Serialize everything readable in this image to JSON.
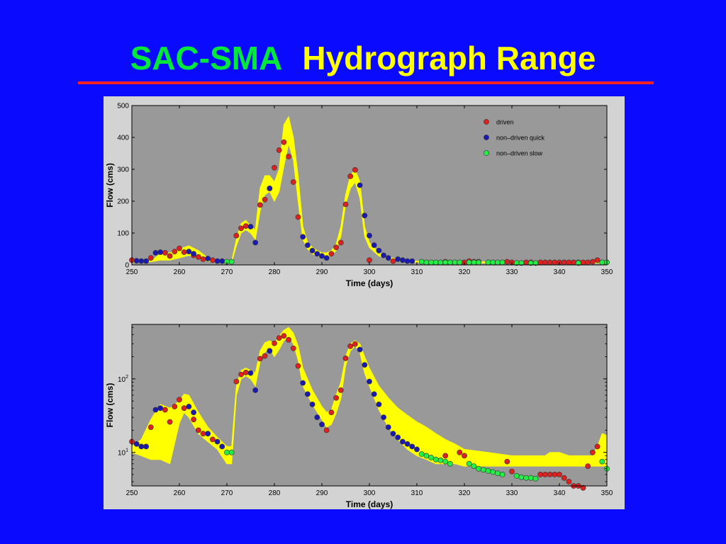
{
  "slide": {
    "title_part1": "SAC-SMA",
    "title_part2": "Hydrograph Range",
    "colors": {
      "background": "#0a0aff",
      "title_part1": "#00e83a",
      "title_part2": "#ffff00",
      "rule": "#ff2020"
    }
  },
  "chart_data": [
    {
      "type": "scatter",
      "xlabel": "Time (days)",
      "ylabel": "Flow (cms)",
      "xlim": [
        250,
        350
      ],
      "ylim": [
        0,
        500
      ],
      "xticks": [
        250,
        260,
        270,
        280,
        290,
        300,
        310,
        320,
        330,
        340,
        350
      ],
      "yticks": [
        0,
        100,
        200,
        300,
        400,
        500
      ],
      "grid": false,
      "legend_position": "top-right",
      "legend": [
        {
          "label": "driven",
          "color": "#dd2020"
        },
        {
          "label": "non–driven quick",
          "color": "#1a1ab0"
        },
        {
          "label": "non–driven slow",
          "color": "#22ee44"
        }
      ],
      "range_band": {
        "color": "#ffff00",
        "x": [
          250,
          252,
          254,
          256,
          258,
          260,
          262,
          264,
          266,
          268,
          270,
          271,
          272,
          273,
          274,
          275,
          276,
          277,
          278,
          279,
          280,
          281,
          282,
          283,
          284,
          285,
          286,
          287,
          288,
          289,
          290,
          291,
          292,
          293,
          294,
          295,
          296,
          297,
          298,
          299,
          300,
          302,
          304,
          306,
          308,
          310,
          320,
          330,
          340,
          350
        ],
        "upper": [
          10,
          10,
          12,
          35,
          38,
          50,
          60,
          45,
          22,
          15,
          10,
          12,
          80,
          130,
          140,
          120,
          110,
          240,
          280,
          280,
          260,
          300,
          440,
          465,
          400,
          280,
          120,
          70,
          55,
          45,
          38,
          38,
          45,
          65,
          120,
          220,
          280,
          300,
          260,
          120,
          70,
          38,
          25,
          18,
          14,
          12,
          10,
          10,
          10,
          12
        ],
        "lower": [
          8,
          8,
          10,
          15,
          15,
          22,
          30,
          20,
          12,
          9,
          7,
          7,
          60,
          100,
          110,
          100,
          80,
          170,
          220,
          230,
          200,
          230,
          310,
          380,
          330,
          200,
          80,
          50,
          35,
          28,
          25,
          25,
          30,
          45,
          90,
          190,
          240,
          260,
          210,
          90,
          55,
          28,
          20,
          12,
          10,
          8,
          6,
          6,
          6,
          6
        ]
      },
      "series": [
        {
          "name": "driven",
          "color": "#dd2020",
          "x": [
            250,
            254,
            257,
            258,
            259,
            260,
            261,
            263,
            264,
            265,
            267,
            272,
            273,
            274,
            277,
            278,
            279,
            280,
            281,
            282,
            283,
            284,
            285,
            292,
            293,
            294,
            295,
            296,
            297,
            300,
            305,
            312,
            316,
            320,
            321,
            322,
            323,
            325,
            329,
            330,
            333,
            334,
            336,
            337,
            338,
            339,
            340,
            341,
            342,
            343,
            344,
            345,
            346,
            347,
            348
          ],
          "y": [
            15,
            22,
            38,
            28,
            42,
            52,
            40,
            30,
            25,
            18,
            15,
            92,
            115,
            122,
            188,
            205,
            240,
            305,
            360,
            385,
            340,
            260,
            150,
            35,
            55,
            70,
            190,
            278,
            298,
            15,
            12,
            8,
            10,
            8,
            12,
            10,
            10,
            8,
            10,
            8,
            8,
            8,
            8,
            8,
            8,
            8,
            8,
            8,
            8,
            8,
            8,
            8,
            8,
            10,
            15
          ]
        },
        {
          "name": "non–driven quick",
          "color": "#1a1ab0",
          "x": [
            251,
            252,
            253,
            255,
            256,
            262,
            263,
            266,
            268,
            269,
            275,
            276,
            279,
            286,
            287,
            288,
            289,
            290,
            291,
            298,
            299,
            300,
            301,
            302,
            303,
            304,
            306,
            307,
            308,
            309
          ],
          "y": [
            13,
            12,
            12,
            38,
            40,
            42,
            35,
            20,
            12,
            12,
            120,
            70,
            240,
            88,
            62,
            45,
            35,
            28,
            22,
            250,
            155,
            92,
            62,
            45,
            30,
            22,
            18,
            15,
            12,
            12
          ]
        },
        {
          "name": "non–driven slow",
          "color": "#22ee44",
          "x": [
            270,
            271,
            311,
            312,
            313,
            314,
            315,
            316,
            317,
            318,
            319,
            321,
            322,
            323,
            325,
            326,
            327,
            328,
            331,
            332,
            334,
            335,
            344,
            349,
            350
          ],
          "y": [
            10,
            10,
            10,
            8,
            8,
            8,
            8,
            8,
            8,
            8,
            8,
            8,
            8,
            8,
            8,
            8,
            8,
            8,
            6,
            6,
            6,
            6,
            6,
            8,
            8
          ]
        }
      ]
    },
    {
      "type": "scatter",
      "xlabel": "Time (days)",
      "ylabel": "Flow (cms)",
      "xlim": [
        250,
        350
      ],
      "yscale": "log",
      "ylim": [
        3.5,
        550
      ],
      "xticks": [
        250,
        260,
        270,
        280,
        290,
        300,
        310,
        320,
        330,
        340,
        350
      ],
      "yticks": [
        {
          "value": 10,
          "label": "10",
          "sup": "1"
        },
        {
          "value": 100,
          "label": "10",
          "sup": "2"
        }
      ],
      "grid": false,
      "range_band": {
        "color": "#ffff00",
        "x": [
          250,
          252,
          254,
          256,
          258,
          260,
          261,
          262,
          264,
          266,
          268,
          270,
          271,
          272,
          273,
          274,
          275,
          276,
          277,
          278,
          279,
          280,
          281,
          282,
          283,
          284,
          285,
          286,
          288,
          290,
          291,
          292,
          293,
          294,
          295,
          296,
          297,
          298,
          299,
          300,
          302,
          304,
          306,
          308,
          310,
          312,
          314,
          316,
          318,
          320,
          325,
          330,
          335,
          337,
          338,
          340,
          342,
          344,
          346,
          347,
          348,
          349,
          350
        ],
        "upper": [
          12,
          15,
          28,
          45,
          40,
          50,
          62,
          60,
          35,
          22,
          16,
          12,
          12,
          80,
          130,
          140,
          130,
          120,
          240,
          310,
          330,
          300,
          380,
          460,
          500,
          420,
          280,
          140,
          70,
          42,
          35,
          38,
          60,
          90,
          200,
          300,
          330,
          300,
          200,
          140,
          80,
          55,
          40,
          32,
          26,
          22,
          18,
          15,
          13,
          11,
          10,
          9,
          9,
          9,
          10,
          10,
          9,
          9,
          9,
          9,
          12,
          18,
          17
        ],
        "lower": [
          10,
          9,
          8,
          8,
          7,
          25,
          35,
          30,
          18,
          14,
          11,
          7,
          7,
          60,
          100,
          110,
          100,
          80,
          170,
          230,
          260,
          200,
          250,
          330,
          380,
          300,
          180,
          80,
          45,
          28,
          22,
          24,
          34,
          54,
          150,
          240,
          280,
          230,
          120,
          80,
          38,
          22,
          15,
          11,
          9,
          8,
          7,
          7,
          7,
          6.5,
          6.5,
          6.5,
          6.5,
          6.5,
          6.5,
          6.5,
          6.5,
          6.5,
          6.5,
          6.5,
          6.5,
          6.5,
          6.5
        ]
      },
      "series": [
        {
          "name": "driven",
          "color": "#dd2020",
          "x": [
            250,
            254,
            257,
            258,
            259,
            260,
            261,
            263,
            264,
            265,
            267,
            272,
            273,
            274,
            277,
            278,
            279,
            280,
            281,
            282,
            283,
            284,
            285,
            291,
            292,
            293,
            294,
            295,
            296,
            297,
            316,
            319,
            320,
            329,
            330,
            336,
            337,
            338,
            339,
            340,
            341,
            342,
            343,
            344,
            345,
            346,
            347,
            348
          ],
          "y": [
            14,
            22,
            38,
            26,
            42,
            52,
            40,
            28,
            20,
            18,
            15,
            92,
            115,
            122,
            188,
            205,
            240,
            305,
            360,
            385,
            340,
            260,
            150,
            20,
            35,
            55,
            70,
            190,
            278,
            298,
            9,
            10,
            9,
            7.5,
            5.5,
            5,
            5,
            5,
            5,
            5,
            4.5,
            4,
            3.5,
            3.5,
            3.3,
            6.5,
            10,
            12
          ]
        },
        {
          "name": "non–driven quick",
          "color": "#1a1ab0",
          "x": [
            251,
            252,
            253,
            255,
            256,
            262,
            263,
            266,
            268,
            269,
            275,
            276,
            279,
            286,
            287,
            288,
            289,
            290,
            298,
            299,
            300,
            301,
            302,
            303,
            304,
            305,
            306,
            307,
            308,
            309,
            310
          ],
          "y": [
            13,
            12,
            12,
            38,
            40,
            42,
            35,
            18,
            14,
            12,
            120,
            70,
            240,
            88,
            62,
            45,
            30,
            24,
            250,
            155,
            92,
            62,
            45,
            30,
            22,
            18,
            16,
            14,
            13,
            12,
            11
          ]
        },
        {
          "name": "non–driven slow",
          "color": "#22ee44",
          "x": [
            270,
            271,
            311,
            312,
            313,
            314,
            315,
            316,
            317,
            321,
            322,
            323,
            324,
            325,
            326,
            327,
            328,
            331,
            332,
            333,
            334,
            335,
            349,
            350
          ],
          "y": [
            10,
            10,
            9.5,
            9,
            8.5,
            8,
            7.8,
            7.5,
            7,
            7,
            6.5,
            6,
            5.8,
            5.6,
            5.4,
            5.2,
            5,
            4.8,
            4.6,
            4.5,
            4.5,
            4.4,
            7.5,
            6
          ]
        }
      ]
    }
  ]
}
